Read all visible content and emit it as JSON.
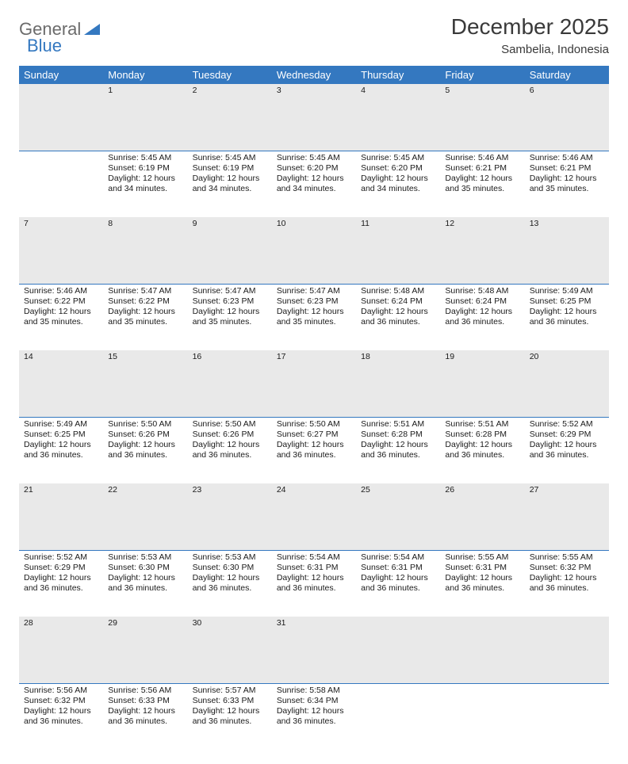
{
  "brand": {
    "word1": "General",
    "word2": "Blue"
  },
  "title": "December 2025",
  "location": "Sambelia, Indonesia",
  "colors": {
    "header_bg": "#3478c0",
    "header_text": "#ffffff",
    "daynum_bg": "#e9e9e9",
    "daynum_text": "#555555",
    "rule": "#3478c0",
    "body_text": "#1a1a1a",
    "title_text": "#3a3a3a",
    "logo_gray": "#6b6b6b",
    "logo_blue": "#3478c0",
    "page_bg": "#ffffff"
  },
  "weekdays": [
    "Sunday",
    "Monday",
    "Tuesday",
    "Wednesday",
    "Thursday",
    "Friday",
    "Saturday"
  ],
  "weeks": [
    {
      "nums": [
        "",
        "1",
        "2",
        "3",
        "4",
        "5",
        "6"
      ],
      "cells": [
        null,
        {
          "sunrise": "5:45 AM",
          "sunset": "6:19 PM",
          "daylight": "12 hours and 34 minutes."
        },
        {
          "sunrise": "5:45 AM",
          "sunset": "6:19 PM",
          "daylight": "12 hours and 34 minutes."
        },
        {
          "sunrise": "5:45 AM",
          "sunset": "6:20 PM",
          "daylight": "12 hours and 34 minutes."
        },
        {
          "sunrise": "5:45 AM",
          "sunset": "6:20 PM",
          "daylight": "12 hours and 34 minutes."
        },
        {
          "sunrise": "5:46 AM",
          "sunset": "6:21 PM",
          "daylight": "12 hours and 35 minutes."
        },
        {
          "sunrise": "5:46 AM",
          "sunset": "6:21 PM",
          "daylight": "12 hours and 35 minutes."
        }
      ]
    },
    {
      "nums": [
        "7",
        "8",
        "9",
        "10",
        "11",
        "12",
        "13"
      ],
      "cells": [
        {
          "sunrise": "5:46 AM",
          "sunset": "6:22 PM",
          "daylight": "12 hours and 35 minutes."
        },
        {
          "sunrise": "5:47 AM",
          "sunset": "6:22 PM",
          "daylight": "12 hours and 35 minutes."
        },
        {
          "sunrise": "5:47 AM",
          "sunset": "6:23 PM",
          "daylight": "12 hours and 35 minutes."
        },
        {
          "sunrise": "5:47 AM",
          "sunset": "6:23 PM",
          "daylight": "12 hours and 35 minutes."
        },
        {
          "sunrise": "5:48 AM",
          "sunset": "6:24 PM",
          "daylight": "12 hours and 36 minutes."
        },
        {
          "sunrise": "5:48 AM",
          "sunset": "6:24 PM",
          "daylight": "12 hours and 36 minutes."
        },
        {
          "sunrise": "5:49 AM",
          "sunset": "6:25 PM",
          "daylight": "12 hours and 36 minutes."
        }
      ]
    },
    {
      "nums": [
        "14",
        "15",
        "16",
        "17",
        "18",
        "19",
        "20"
      ],
      "cells": [
        {
          "sunrise": "5:49 AM",
          "sunset": "6:25 PM",
          "daylight": "12 hours and 36 minutes."
        },
        {
          "sunrise": "5:50 AM",
          "sunset": "6:26 PM",
          "daylight": "12 hours and 36 minutes."
        },
        {
          "sunrise": "5:50 AM",
          "sunset": "6:26 PM",
          "daylight": "12 hours and 36 minutes."
        },
        {
          "sunrise": "5:50 AM",
          "sunset": "6:27 PM",
          "daylight": "12 hours and 36 minutes."
        },
        {
          "sunrise": "5:51 AM",
          "sunset": "6:28 PM",
          "daylight": "12 hours and 36 minutes."
        },
        {
          "sunrise": "5:51 AM",
          "sunset": "6:28 PM",
          "daylight": "12 hours and 36 minutes."
        },
        {
          "sunrise": "5:52 AM",
          "sunset": "6:29 PM",
          "daylight": "12 hours and 36 minutes."
        }
      ]
    },
    {
      "nums": [
        "21",
        "22",
        "23",
        "24",
        "25",
        "26",
        "27"
      ],
      "cells": [
        {
          "sunrise": "5:52 AM",
          "sunset": "6:29 PM",
          "daylight": "12 hours and 36 minutes."
        },
        {
          "sunrise": "5:53 AM",
          "sunset": "6:30 PM",
          "daylight": "12 hours and 36 minutes."
        },
        {
          "sunrise": "5:53 AM",
          "sunset": "6:30 PM",
          "daylight": "12 hours and 36 minutes."
        },
        {
          "sunrise": "5:54 AM",
          "sunset": "6:31 PM",
          "daylight": "12 hours and 36 minutes."
        },
        {
          "sunrise": "5:54 AM",
          "sunset": "6:31 PM",
          "daylight": "12 hours and 36 minutes."
        },
        {
          "sunrise": "5:55 AM",
          "sunset": "6:31 PM",
          "daylight": "12 hours and 36 minutes."
        },
        {
          "sunrise": "5:55 AM",
          "sunset": "6:32 PM",
          "daylight": "12 hours and 36 minutes."
        }
      ]
    },
    {
      "nums": [
        "28",
        "29",
        "30",
        "31",
        "",
        "",
        ""
      ],
      "cells": [
        {
          "sunrise": "5:56 AM",
          "sunset": "6:32 PM",
          "daylight": "12 hours and 36 minutes."
        },
        {
          "sunrise": "5:56 AM",
          "sunset": "6:33 PM",
          "daylight": "12 hours and 36 minutes."
        },
        {
          "sunrise": "5:57 AM",
          "sunset": "6:33 PM",
          "daylight": "12 hours and 36 minutes."
        },
        {
          "sunrise": "5:58 AM",
          "sunset": "6:34 PM",
          "daylight": "12 hours and 36 minutes."
        },
        null,
        null,
        null
      ]
    }
  ],
  "labels": {
    "sunrise": "Sunrise:",
    "sunset": "Sunset:",
    "daylight": "Daylight:"
  }
}
